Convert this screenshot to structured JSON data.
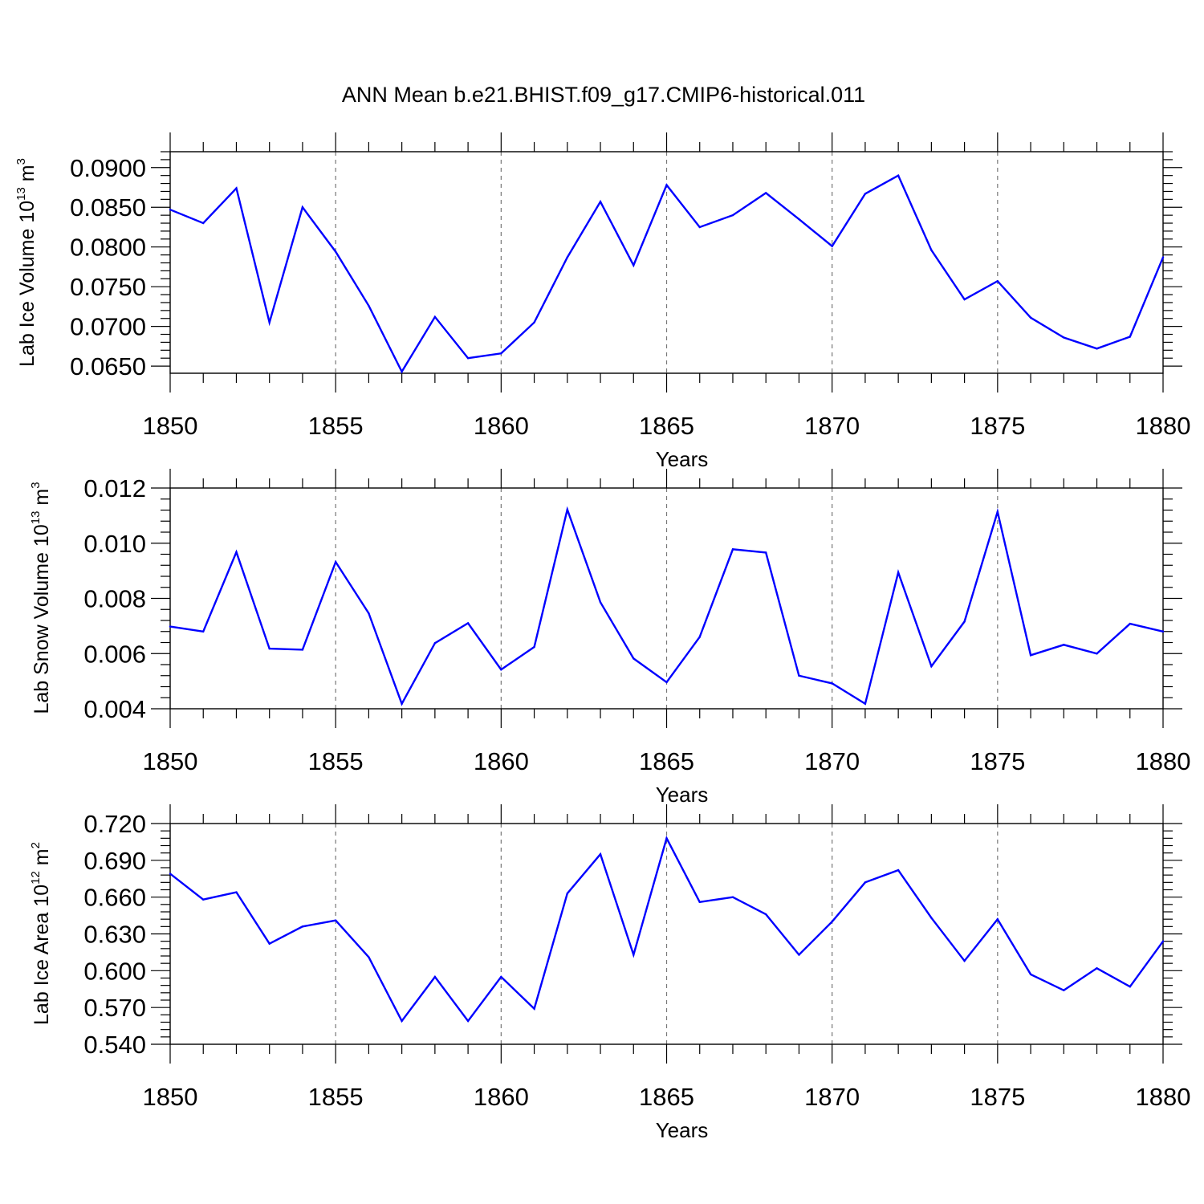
{
  "title": "ANN Mean b.e21.BHIST.f09_g17.CMIP6-historical.011",
  "colors": {
    "line": "#0000ff",
    "axis": "#000000",
    "grid": "#777777"
  },
  "chart_data": [
    {
      "type": "line",
      "ylabel": {
        "text": "Lab Ice Volume 10",
        "sup": "13",
        "unit": " m",
        "unit_sup": "3"
      },
      "xlabel": "Years",
      "xlim": [
        1850,
        1880
      ],
      "ylim": [
        0.0641,
        0.092
      ],
      "yticks": [
        0.065,
        0.07,
        0.075,
        0.08,
        0.085,
        0.09
      ],
      "ytick_labels": [
        "0.0650",
        "0.0700",
        "0.0750",
        "0.0800",
        "0.0850",
        "0.0900"
      ],
      "xticks": [
        1850,
        1855,
        1860,
        1865,
        1870,
        1875,
        1880
      ],
      "xtick_labels": [
        "1850",
        "1855",
        "1860",
        "1865",
        "1870",
        "1875",
        "1880"
      ],
      "grid": "dashed vertical at major x ticks",
      "x": [
        1850,
        1851,
        1852,
        1853,
        1854,
        1855,
        1856,
        1857,
        1858,
        1859,
        1860,
        1861,
        1862,
        1863,
        1864,
        1865,
        1866,
        1867,
        1868,
        1869,
        1870,
        1871,
        1872,
        1873,
        1874,
        1875,
        1876,
        1877,
        1878,
        1879,
        1880
      ],
      "values": [
        0.0847,
        0.083,
        0.0874,
        0.0705,
        0.085,
        0.0794,
        0.0726,
        0.0643,
        0.0712,
        0.066,
        0.0666,
        0.0705,
        0.0787,
        0.0857,
        0.0777,
        0.0878,
        0.0825,
        0.084,
        0.0868,
        0.0835,
        0.0801,
        0.0867,
        0.089,
        0.0796,
        0.0734,
        0.0757,
        0.0711,
        0.0686,
        0.0672,
        0.0687,
        0.0787
      ]
    },
    {
      "type": "line",
      "ylabel": {
        "text": "Lab Snow Volume 10",
        "sup": "13",
        "unit": " m",
        "unit_sup": "3"
      },
      "xlabel": "Years",
      "xlim": [
        1850,
        1880
      ],
      "ylim": [
        0.004,
        0.012
      ],
      "yticks": [
        0.004,
        0.006,
        0.008,
        0.01,
        0.012
      ],
      "ytick_labels": [
        "0.004",
        "0.006",
        "0.008",
        "0.010",
        "0.012"
      ],
      "xticks": [
        1850,
        1855,
        1860,
        1865,
        1870,
        1875,
        1880
      ],
      "xtick_labels": [
        "1850",
        "1855",
        "1860",
        "1865",
        "1870",
        "1875",
        "1880"
      ],
      "grid": "dashed vertical at major x ticks",
      "x": [
        1850,
        1851,
        1852,
        1853,
        1854,
        1855,
        1856,
        1857,
        1858,
        1859,
        1860,
        1861,
        1862,
        1863,
        1864,
        1865,
        1866,
        1867,
        1868,
        1869,
        1870,
        1871,
        1872,
        1873,
        1874,
        1875,
        1876,
        1877,
        1878,
        1879,
        1880
      ],
      "values": [
        0.00698,
        0.0068,
        0.00968,
        0.00618,
        0.00614,
        0.00932,
        0.00746,
        0.00418,
        0.00638,
        0.0071,
        0.00542,
        0.00624,
        0.01122,
        0.00786,
        0.00582,
        0.00496,
        0.0066,
        0.00978,
        0.00966,
        0.0052,
        0.00492,
        0.00418,
        0.00894,
        0.00554,
        0.00716,
        0.01114,
        0.00594,
        0.00632,
        0.006,
        0.00708,
        0.0068
      ]
    },
    {
      "type": "line",
      "ylabel": {
        "text": "Lab Ice Area 10",
        "sup": "12",
        "unit": " m",
        "unit_sup": "2"
      },
      "xlabel": "Years",
      "xlim": [
        1850,
        1880
      ],
      "ylim": [
        0.54,
        0.72
      ],
      "yticks": [
        0.54,
        0.57,
        0.6,
        0.63,
        0.66,
        0.69,
        0.72
      ],
      "ytick_labels": [
        "0.540",
        "0.570",
        "0.600",
        "0.630",
        "0.660",
        "0.690",
        "0.720"
      ],
      "xticks": [
        1850,
        1855,
        1860,
        1865,
        1870,
        1875,
        1880
      ],
      "xtick_labels": [
        "1850",
        "1855",
        "1860",
        "1865",
        "1870",
        "1875",
        "1880"
      ],
      "grid": "dashed vertical at major x ticks",
      "x": [
        1850,
        1851,
        1852,
        1853,
        1854,
        1855,
        1856,
        1857,
        1858,
        1859,
        1860,
        1861,
        1862,
        1863,
        1864,
        1865,
        1866,
        1867,
        1868,
        1869,
        1870,
        1871,
        1872,
        1873,
        1874,
        1875,
        1876,
        1877,
        1878,
        1879,
        1880
      ],
      "values": [
        0.679,
        0.658,
        0.664,
        0.622,
        0.636,
        0.641,
        0.611,
        0.559,
        0.595,
        0.559,
        0.595,
        0.569,
        0.663,
        0.695,
        0.613,
        0.708,
        0.656,
        0.66,
        0.646,
        0.613,
        0.64,
        0.672,
        0.682,
        0.643,
        0.608,
        0.642,
        0.597,
        0.584,
        0.602,
        0.587,
        0.624
      ]
    }
  ]
}
